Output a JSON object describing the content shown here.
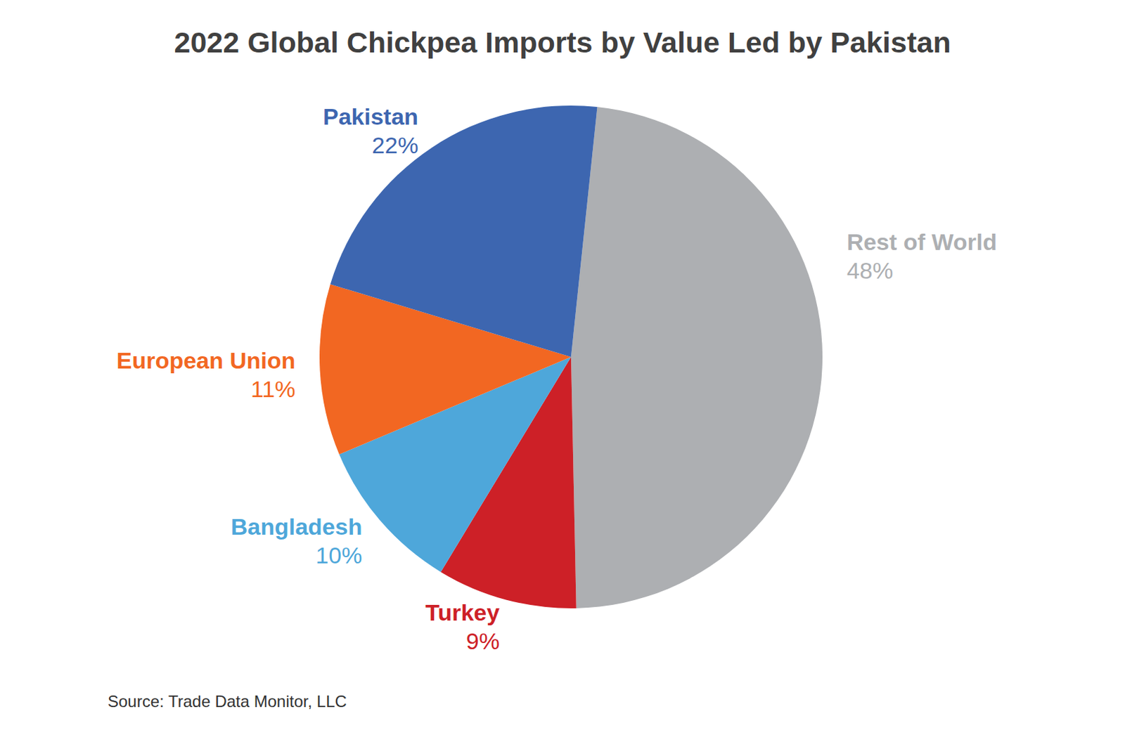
{
  "chart_data": {
    "type": "pie",
    "title": "2022 Global Chickpea Imports by Value Led by Pakistan",
    "categories": [
      "Rest of World",
      "Turkey",
      "Bangladesh",
      "European Union",
      "Pakistan"
    ],
    "values": [
      48,
      9,
      10,
      11,
      22
    ],
    "value_labels": [
      "48%",
      "9%",
      "10%",
      "11%",
      "22%"
    ],
    "colors": [
      "#adafb2",
      "#cd2027",
      "#4ea7da",
      "#f26722",
      "#3d66b0"
    ],
    "data_labels": true,
    "source": "Source: Trade Data Monitor, LLC"
  }
}
